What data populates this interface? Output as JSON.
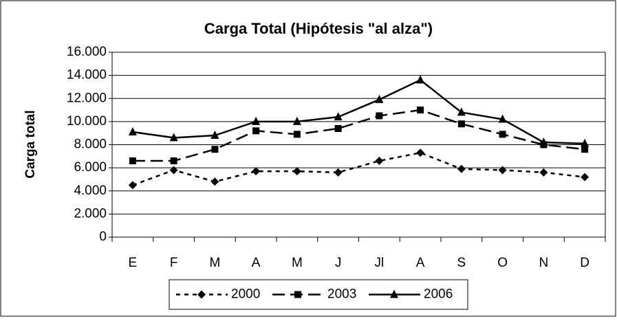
{
  "chart_data": {
    "type": "line",
    "title": "Carga Total (Hipótesis \"al alza\")",
    "y_label": "Carga total",
    "categories": [
      "E",
      "F",
      "M",
      "A",
      "M",
      "J",
      "Jl",
      "A",
      "S",
      "O",
      "N",
      "D"
    ],
    "series": [
      {
        "name": "2000",
        "color": "#000000",
        "marker": "diamond",
        "values": [
          4500,
          5800,
          4800,
          5700,
          5700,
          5600,
          6600,
          7300,
          5900,
          5800,
          5600,
          5200
        ]
      },
      {
        "name": "2003",
        "color": "#000000",
        "marker": "square",
        "values": [
          6600,
          6600,
          7600,
          9200,
          8900,
          9400,
          10500,
          11000,
          9800,
          8900,
          8000,
          7600
        ]
      },
      {
        "name": "2006",
        "color": "#000000",
        "marker": "triangle",
        "values": [
          9100,
          8600,
          8800,
          10000,
          10000,
          10400,
          11900,
          13600,
          10800,
          10200,
          8200,
          8100
        ]
      }
    ],
    "ylim": [
      0,
      16000
    ],
    "yticks": [
      0,
      {
        "value": 2000,
        "label": "2.000"
      },
      {
        "value": 4000,
        "label": "4.000"
      },
      {
        "value": 6000,
        "label": "6.000"
      },
      {
        "value": 8000,
        "label": "8.000"
      },
      {
        "value": 10000,
        "label": "10.000"
      },
      {
        "value": 12000,
        "label": "12.000"
      },
      {
        "value": 14000,
        "label": "14.000"
      },
      {
        "value": 16000,
        "label": "16.000"
      }
    ],
    "grid": true,
    "legend": "bottom"
  }
}
